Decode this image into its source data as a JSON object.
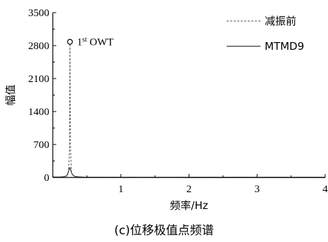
{
  "chart_data": {
    "type": "line",
    "xlabel": "频率/Hz",
    "ylabel": "幅值",
    "xlim": [
      0,
      4
    ],
    "ylim": [
      0,
      3500
    ],
    "x_ticks": [
      1,
      2,
      3,
      4
    ],
    "x_tick_labels": [
      "1",
      "2",
      "3",
      "4"
    ],
    "y_ticks": [
      0,
      700,
      1400,
      2100,
      2800,
      3500
    ],
    "y_tick_labels": [
      "0",
      "700",
      "1400",
      "2100",
      "2800",
      "3500"
    ],
    "legend_position": "top-right",
    "series": [
      {
        "name": "减振前",
        "style": "dashed",
        "color": "#555555",
        "x": [
          0.0,
          0.05,
          0.1,
          0.15,
          0.2,
          0.23,
          0.245,
          0.252,
          0.26,
          0.275,
          0.3,
          0.35,
          0.45,
          0.6,
          1.0,
          2.0,
          3.0,
          4.0
        ],
        "y": [
          10,
          8,
          10,
          15,
          30,
          90,
          600,
          2880,
          600,
          90,
          30,
          12,
          6,
          4,
          3,
          2,
          2,
          2
        ]
      },
      {
        "name": "MTMD9",
        "style": "solid",
        "color": "#555555",
        "x": [
          0.0,
          0.05,
          0.1,
          0.15,
          0.2,
          0.22,
          0.235,
          0.25,
          0.26,
          0.275,
          0.29,
          0.32,
          0.38,
          0.45,
          0.6,
          1.0,
          2.0,
          3.0,
          4.0
        ],
        "y": [
          10,
          8,
          10,
          14,
          30,
          80,
          150,
          210,
          170,
          100,
          60,
          25,
          12,
          6,
          4,
          3,
          2,
          2,
          2
        ]
      }
    ],
    "annotations": [
      {
        "text": "1st OWT",
        "x": 0.252,
        "y": 2880
      }
    ]
  },
  "caption": "(c)位移极值点频谱"
}
